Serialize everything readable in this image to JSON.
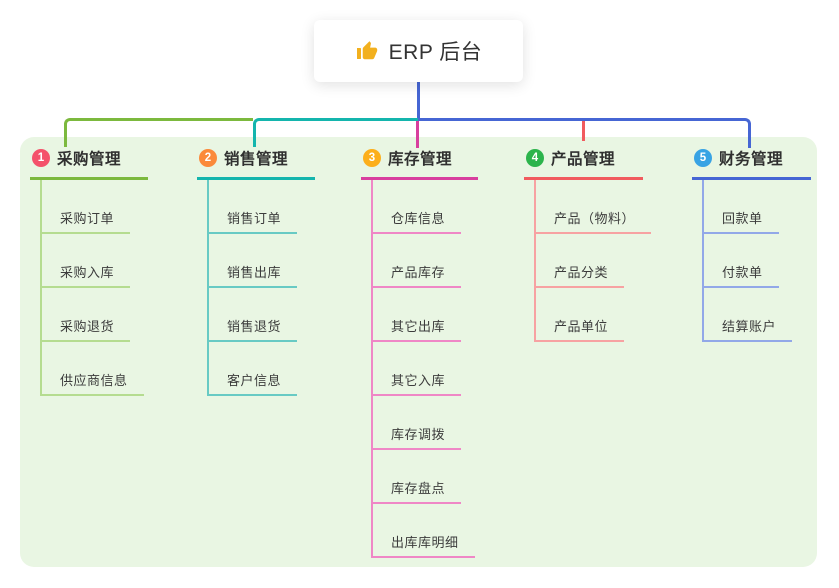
{
  "root": {
    "title": "ERP 后台",
    "icon": "thumbs-up",
    "icon_color": "#f2b01e"
  },
  "colors": {
    "panel_bg": "#e9f6e3",
    "trunk_blue": "#4666d4",
    "text_dark": "#333333"
  },
  "branches": [
    {
      "badge": "1",
      "badge_color": "#f4526b",
      "title": "采购管理",
      "line_color": "#7cb93e",
      "sub_line_color": "#b5dc90",
      "items": [
        "采购订单",
        "采购入库",
        "采购退货",
        "供应商信息"
      ]
    },
    {
      "badge": "2",
      "badge_color": "#fb8a3a",
      "title": "销售管理",
      "line_color": "#14b5ad",
      "sub_line_color": "#68cac4",
      "items": [
        "销售订单",
        "销售出库",
        "销售退货",
        "客户信息"
      ]
    },
    {
      "badge": "3",
      "badge_color": "#fcaf1b",
      "title": "库存管理",
      "line_color": "#d83f9e",
      "sub_line_color": "#ef87c6",
      "items": [
        "仓库信息",
        "产品库存",
        "其它出库",
        "其它入库",
        "库存调拨",
        "库存盘点",
        "出库库明细"
      ]
    },
    {
      "badge": "4",
      "badge_color": "#2cb44c",
      "title": "产品管理",
      "line_color": "#f15b5e",
      "sub_line_color": "#f7a2a2",
      "items": [
        "产品（物料）",
        "产品分类",
        "产品单位"
      ]
    },
    {
      "badge": "5",
      "badge_color": "#38a3e4",
      "title": "财务管理",
      "line_color": "#4666d4",
      "sub_line_color": "#92a8e8",
      "items": [
        "回款单",
        "付款单",
        "结算账户"
      ]
    }
  ]
}
